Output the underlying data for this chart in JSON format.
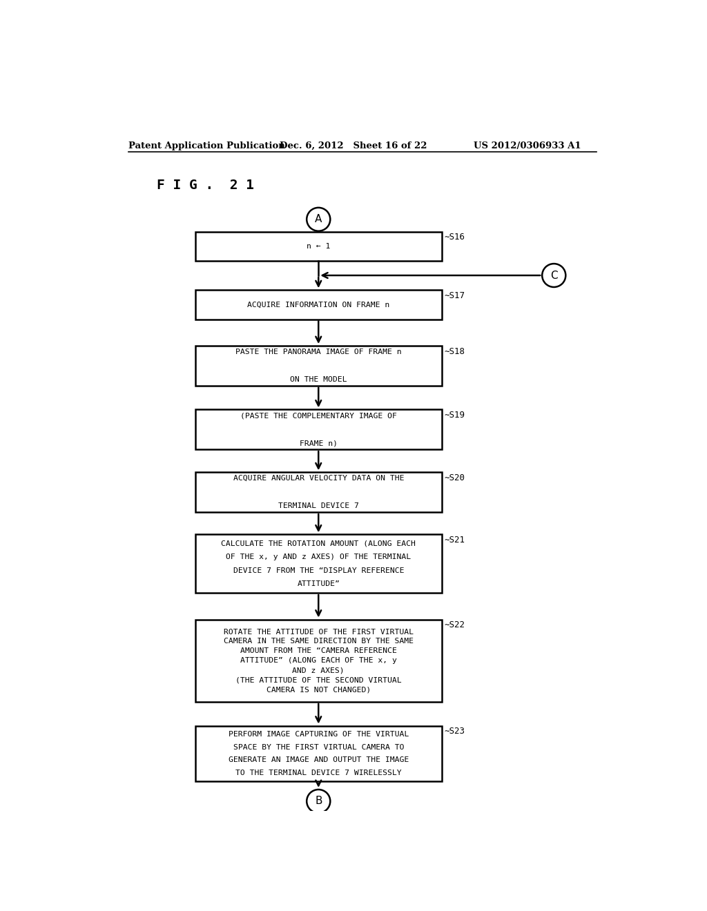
{
  "title": "F I G .  2 1",
  "header_left": "Patent Application Publication",
  "header_mid": "Dec. 6, 2012   Sheet 16 of 22",
  "header_right": "US 2012/0306933 A1",
  "boxes": [
    {
      "step": "S16",
      "lines": [
        "n ← 1"
      ]
    },
    {
      "step": "S17",
      "lines": [
        "ACQUIRE INFORMATION ON FRAME n"
      ]
    },
    {
      "step": "S18",
      "lines": [
        "PASTE THE PANORAMA IMAGE OF FRAME n",
        "ON THE MODEL"
      ]
    },
    {
      "step": "S19",
      "lines": [
        "(PASTE THE COMPLEMENTARY IMAGE OF",
        "FRAME n)"
      ]
    },
    {
      "step": "S20",
      "lines": [
        "ACQUIRE ANGULAR VELOCITY DATA ON THE",
        "TERMINAL DEVICE 7"
      ]
    },
    {
      "step": "S21",
      "lines": [
        "CALCULATE THE ROTATION AMOUNT (ALONG EACH",
        "OF THE x, y AND z AXES) OF THE TERMINAL",
        "DEVICE 7 FROM THE “DISPLAY REFERENCE",
        "ATTITUDE”"
      ]
    },
    {
      "step": "S22",
      "lines": [
        "ROTATE THE ATTITUDE OF THE FIRST VIRTUAL",
        "CAMERA IN THE SAME DIRECTION BY THE SAME",
        "AMOUNT FROM THE “CAMERA REFERENCE",
        "ATTITUDE” (ALONG EACH OF THE x, y",
        "AND z AXES)",
        "(THE ATTITUDE OF THE SECOND VIRTUAL",
        "CAMERA IS NOT CHANGED)"
      ]
    },
    {
      "step": "S23",
      "lines": [
        "PERFORM IMAGE CAPTURING OF THE VIRTUAL",
        "SPACE BY THE FIRST VIRTUAL CAMERA TO",
        "GENERATE AN IMAGE AND OUTPUT THE IMAGE",
        "TO THE TERMINAL DEVICE 7 WIRELESSLY"
      ]
    }
  ],
  "connector_A": "A",
  "connector_B": "B",
  "connector_C": "C",
  "bg_color": "#ffffff",
  "text_color": "#000000"
}
